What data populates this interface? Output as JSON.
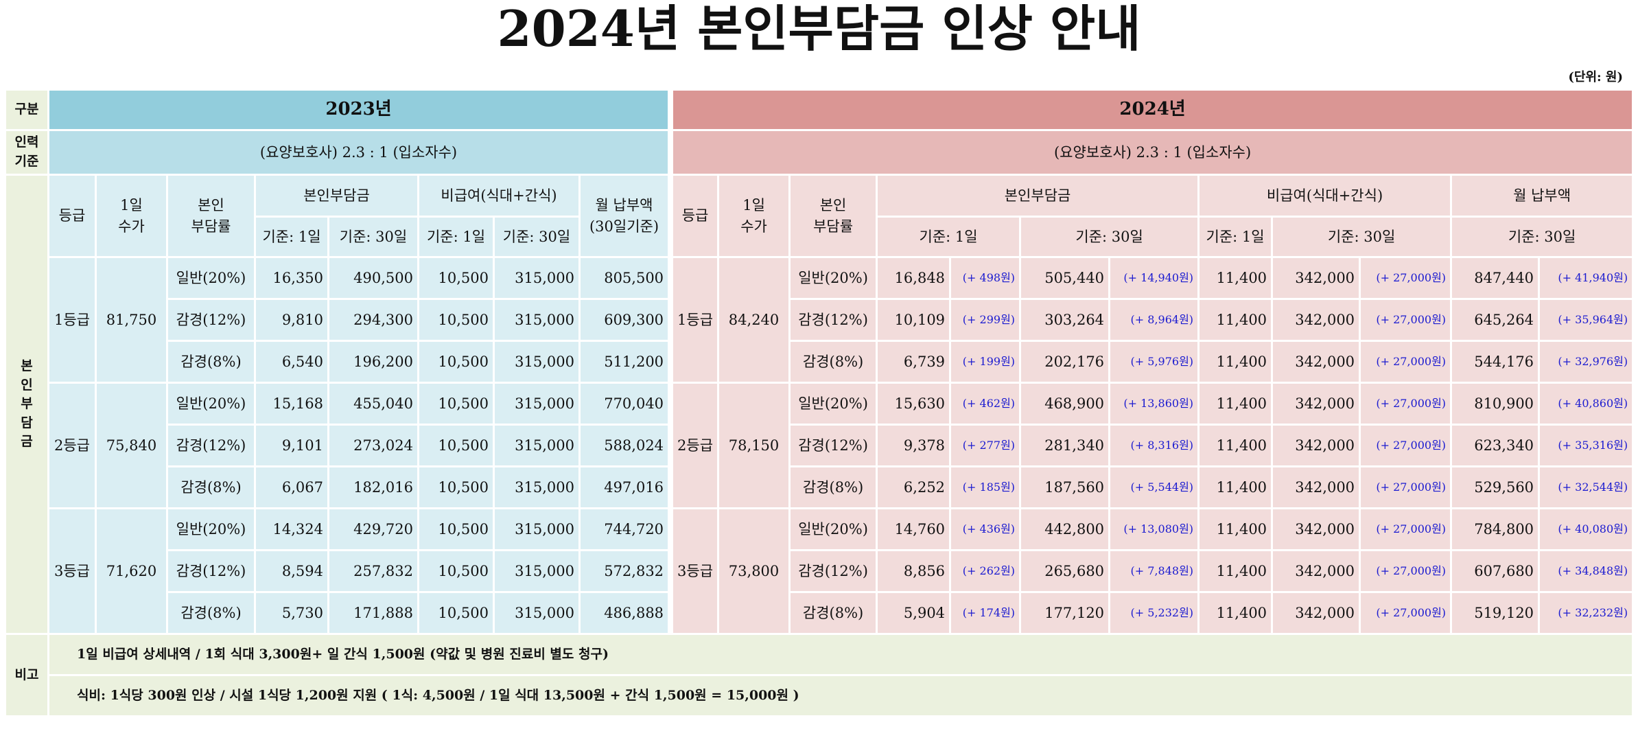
{
  "header": {
    "title": "2024년 본인부담금 인상 안내",
    "unit": "(단위:  원)"
  },
  "table": {
    "corner": "구분",
    "year_2023": "2023년",
    "year_2024": "2024년",
    "staffing_label": "인력\n기준",
    "staffing_2023": "(요양보호사) 2.3 : 1 (입소자수)",
    "staffing_2024": "(요양보호사) 2.3 : 1 (입소자수)",
    "section_label": "본\n인\n부\n담\n금",
    "headers_2023": {
      "grade": "등급",
      "fee": "1일\n수가",
      "rate": "본인\n부담률",
      "copay": "본인부담금",
      "copay_day": "기준: 1일",
      "copay_month": "기준: 30일",
      "nonpay": "비급여(식대+간식)",
      "nonpay_day": "기준: 1일",
      "nonpay_month": "기준: 30일",
      "monthly": "월 납부액\n(30일기준)"
    },
    "headers_2024": {
      "grade": "등급",
      "fee": "1일\n수가",
      "rate": "본인\n부담률",
      "copay": "본인부담금",
      "copay_day": "기준: 1일",
      "copay_month": "기준: 30일",
      "nonpay": "비급여(식대+간식)",
      "nonpay_day": "기준: 1일",
      "nonpay_month": "기준: 30일",
      "monthly": "월 납부액",
      "monthly_month": "기준: 30일"
    },
    "grades_2023": [
      {
        "grade": "1등급",
        "fee": "81,750",
        "rows": [
          [
            "일반(20%)",
            "16,350",
            "490,500",
            "10,500",
            "315,000",
            "805,500"
          ],
          [
            "감경(12%)",
            "9,810",
            "294,300",
            "10,500",
            "315,000",
            "609,300"
          ],
          [
            "감경(8%)",
            "6,540",
            "196,200",
            "10,500",
            "315,000",
            "511,200"
          ]
        ]
      },
      {
        "grade": "2등급",
        "fee": "75,840",
        "rows": [
          [
            "일반(20%)",
            "15,168",
            "455,040",
            "10,500",
            "315,000",
            "770,040"
          ],
          [
            "감경(12%)",
            "9,101",
            "273,024",
            "10,500",
            "315,000",
            "588,024"
          ],
          [
            "감경(8%)",
            "6,067",
            "182,016",
            "10,500",
            "315,000",
            "497,016"
          ]
        ]
      },
      {
        "grade": "3등급",
        "fee": "71,620",
        "rows": [
          [
            "일반(20%)",
            "14,324",
            "429,720",
            "10,500",
            "315,000",
            "744,720"
          ],
          [
            "감경(12%)",
            "8,594",
            "257,832",
            "10,500",
            "315,000",
            "572,832"
          ],
          [
            "감경(8%)",
            "5,730",
            "171,888",
            "10,500",
            "315,000",
            "486,888"
          ]
        ]
      }
    ],
    "grades_2024": [
      {
        "grade": "1등급",
        "fee": "84,240",
        "rows": [
          [
            "일반(20%)",
            "16,848",
            "(+ 498원)",
            "505,440",
            "(+ 14,940원)",
            "11,400",
            "342,000",
            "(+ 27,000원)",
            "847,440",
            "(+ 41,940원)"
          ],
          [
            "감경(12%)",
            "10,109",
            "(+ 299원)",
            "303,264",
            "(+ 8,964원)",
            "11,400",
            "342,000",
            "(+ 27,000원)",
            "645,264",
            "(+ 35,964원)"
          ],
          [
            "감경(8%)",
            "6,739",
            "(+ 199원)",
            "202,176",
            "(+ 5,976원)",
            "11,400",
            "342,000",
            "(+ 27,000원)",
            "544,176",
            "(+ 32,976원)"
          ]
        ]
      },
      {
        "grade": "2등급",
        "fee": "78,150",
        "rows": [
          [
            "일반(20%)",
            "15,630",
            "(+ 462원)",
            "468,900",
            "(+ 13,860원)",
            "11,400",
            "342,000",
            "(+ 27,000원)",
            "810,900",
            "(+ 40,860원)"
          ],
          [
            "감경(12%)",
            "9,378",
            "(+ 277원)",
            "281,340",
            "(+ 8,316원)",
            "11,400",
            "342,000",
            "(+ 27,000원)",
            "623,340",
            "(+ 35,316원)"
          ],
          [
            "감경(8%)",
            "6,252",
            "(+ 185원)",
            "187,560",
            "(+ 5,544원)",
            "11,400",
            "342,000",
            "(+ 27,000원)",
            "529,560",
            "(+ 32,544원)"
          ]
        ]
      },
      {
        "grade": "3등급",
        "fee": "73,800",
        "rows": [
          [
            "일반(20%)",
            "14,760",
            "(+ 436원)",
            "442,800",
            "(+ 13,080원)",
            "11,400",
            "342,000",
            "(+ 27,000원)",
            "784,800",
            "(+ 40,080원)"
          ],
          [
            "감경(12%)",
            "8,856",
            "(+ 262원)",
            "265,680",
            "(+ 7,848원)",
            "11,400",
            "342,000",
            "(+ 27,000원)",
            "607,680",
            "(+ 34,848원)"
          ],
          [
            "감경(8%)",
            "5,904",
            "(+ 174원)",
            "177,120",
            "(+ 5,232원)",
            "11,400",
            "342,000",
            "(+ 27,000원)",
            "519,120",
            "(+ 32,232원)"
          ]
        ]
      }
    ],
    "notes_label": "비고",
    "notes": [
      "1일 비급여 상세내역 / 1회 식대 3,300원+ 일 간식 1,500원 (약값 및 병원 진료비 별도 청구)",
      "식비: 1식당 300원 인상 / 시설 1식당 1,200원 지원 ( 1식: 4,500원 /  1일 식대 13,500원 + 간식 1,500원 = 15,000원 )"
    ]
  }
}
